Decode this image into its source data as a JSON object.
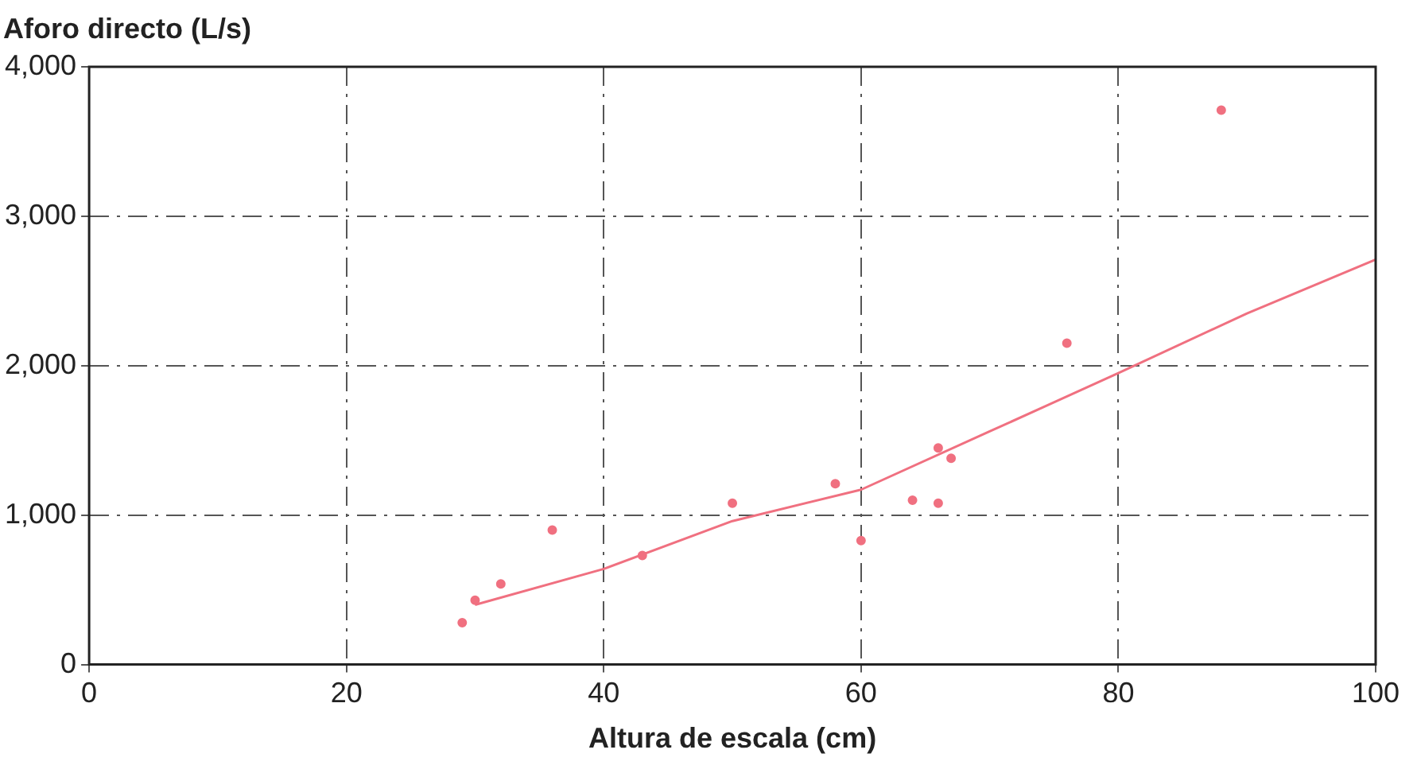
{
  "chart_data": {
    "type": "scatter",
    "xlabel": "Altura de escala (cm)",
    "ylabel": "Aforo directo (L/s)",
    "xlim": [
      0,
      100
    ],
    "xticks": [
      0,
      20,
      40,
      60,
      80,
      100
    ],
    "ylim": [
      0,
      4000
    ],
    "yticks": [
      {
        "value": 0,
        "label": "0"
      },
      {
        "value": 1000,
        "label": "1,000"
      },
      {
        "value": 2000,
        "label": "2,000"
      },
      {
        "value": 3000,
        "label": "3,000"
      },
      {
        "value": 4000,
        "label": "4,000"
      }
    ],
    "grid": true,
    "series": [
      {
        "color": "#f07080",
        "marker": "circle",
        "x": [
          29,
          30,
          32,
          36,
          43,
          50,
          58,
          60,
          64,
          66,
          66,
          67,
          76,
          88
        ],
        "values": [
          280,
          430,
          540,
          900,
          730,
          1080,
          1210,
          830,
          1100,
          1080,
          1450,
          1380,
          2150,
          3710
        ]
      },
      {
        "type": "line",
        "color": "#f07080",
        "x": [
          30,
          40,
          50,
          60,
          70,
          80,
          90,
          100
        ],
        "values": [
          400,
          640,
          960,
          1170,
          1560,
          1950,
          2350,
          2710
        ]
      }
    ]
  }
}
